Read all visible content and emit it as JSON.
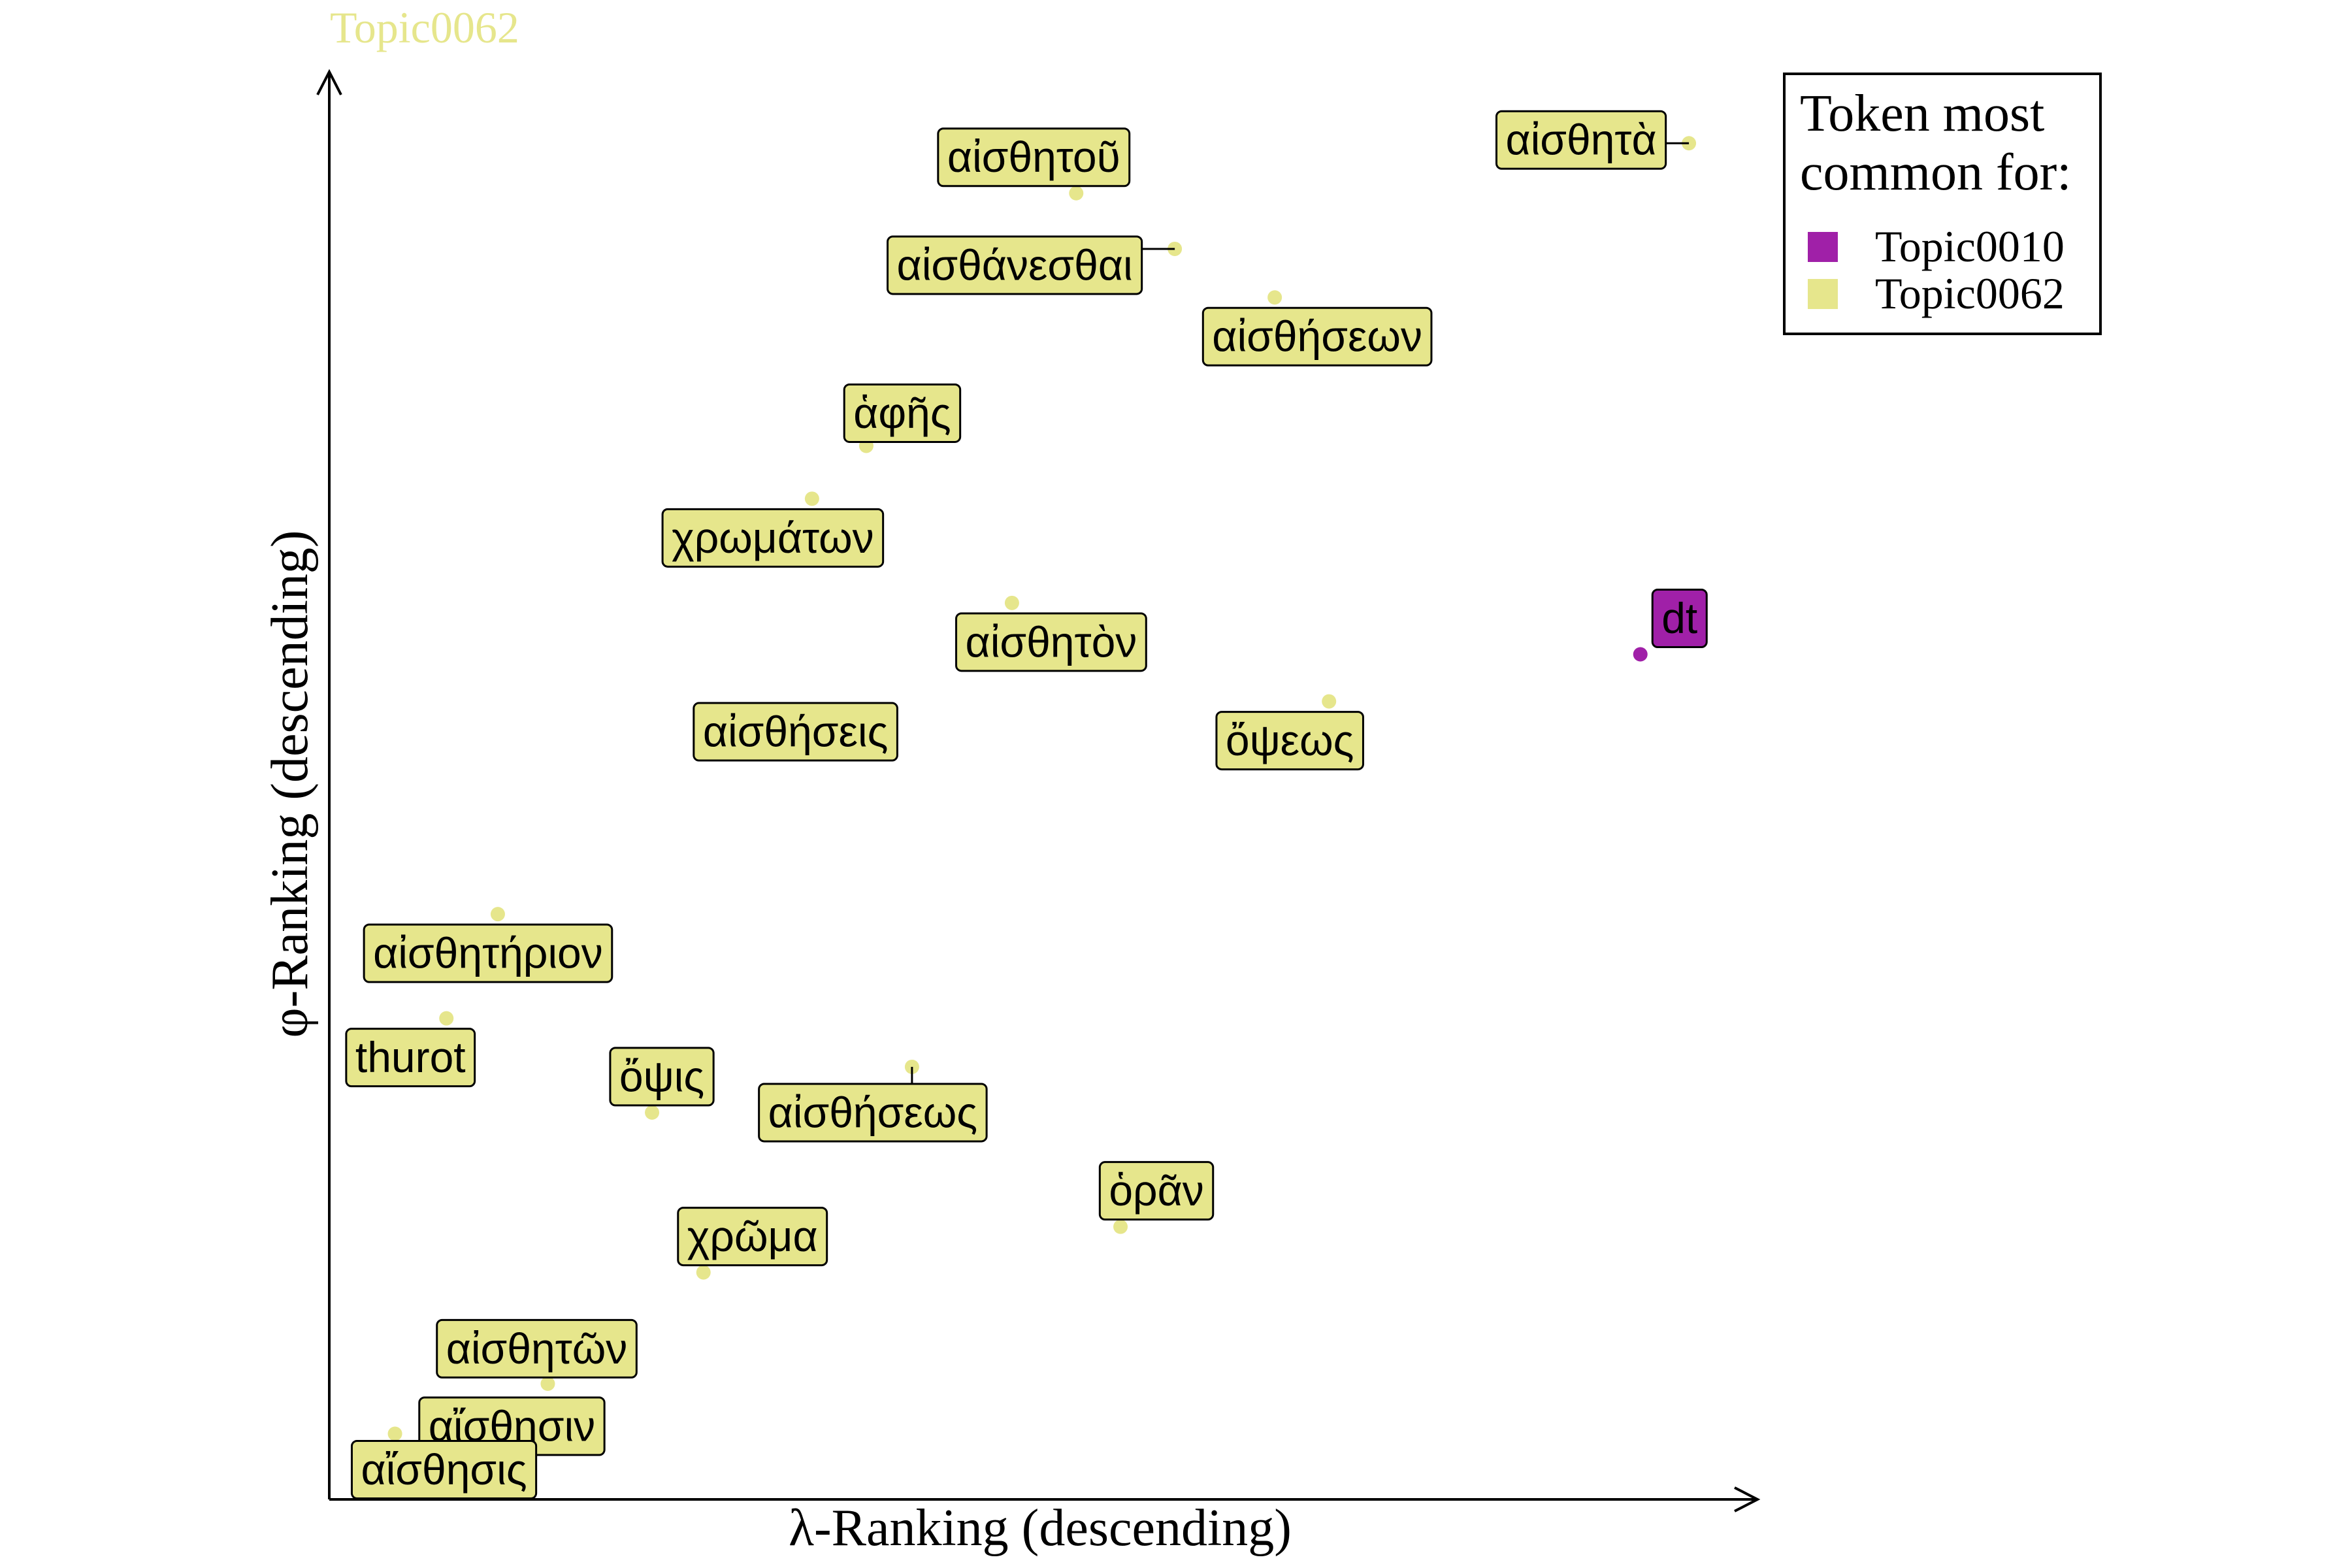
{
  "chart_data": {
    "type": "scatter",
    "title": "Topic0062",
    "xlabel": "λ-Ranking (descending)",
    "ylabel": "φ-Ranking (descending)",
    "xlim": [
      0,
      100
    ],
    "ylim": [
      0,
      100
    ],
    "grid": false,
    "legend_placement": "top-right",
    "legend": {
      "title_lines": [
        "Token most",
        "common for:"
      ],
      "entries": [
        {
          "label": "Topic0010",
          "color": "#a020a8"
        },
        {
          "label": "Topic0062",
          "color": "#e6e68c"
        }
      ]
    },
    "colors": {
      "Topic0010": "#a020a8",
      "Topic0062": "#e6e68c",
      "title": "#e6e68c",
      "label_border": "#000000",
      "axis": "#000000"
    },
    "points": [
      {
        "token": "αἰσθητοῦ",
        "topic": "Topic0062",
        "x": 52.3,
        "y": 91.5
      },
      {
        "token": "αἰσθητὰ",
        "topic": "Topic0062",
        "x": 95.2,
        "y": 95.0
      },
      {
        "token": "αἰσθάνεσθαι",
        "topic": "Topic0062",
        "x": 59.2,
        "y": 87.6
      },
      {
        "token": "αἰσθήσεων",
        "topic": "Topic0062",
        "x": 66.2,
        "y": 84.2
      },
      {
        "token": "ἁφῆς",
        "topic": "Topic0062",
        "x": 37.6,
        "y": 73.8
      },
      {
        "token": "χρωμάτων",
        "topic": "Topic0062",
        "x": 33.8,
        "y": 70.1
      },
      {
        "token": "αἰσθητὸν",
        "topic": "Topic0062",
        "x": 47.8,
        "y": 62.8
      },
      {
        "token": "dt",
        "topic": "Topic0010",
        "x": 91.8,
        "y": 59.2
      },
      {
        "token": "ὄψεως",
        "topic": "Topic0062",
        "x": 70.0,
        "y": 55.9
      },
      {
        "token": "αἰσθήσεις",
        "topic": "Topic0062",
        "x": 29.9,
        "y": 52.4
      },
      {
        "token": "αἰσθητήριον",
        "topic": "Topic0062",
        "x": 11.8,
        "y": 41.0
      },
      {
        "token": "thurot",
        "topic": "Topic0062",
        "x": 8.2,
        "y": 33.7
      },
      {
        "token": "αἰσθήσεως",
        "topic": "Topic0062",
        "x": 40.8,
        "y": 30.3
      },
      {
        "token": "ὄψις",
        "topic": "Topic0062",
        "x": 22.6,
        "y": 27.1
      },
      {
        "token": "ὁρᾶν",
        "topic": "Topic0062",
        "x": 55.4,
        "y": 19.1
      },
      {
        "token": "χρῶμα",
        "topic": "Topic0062",
        "x": 26.2,
        "y": 15.9
      },
      {
        "token": "αἰσθητῶν",
        "topic": "Topic0062",
        "x": 19.1,
        "y": 11.7
      },
      {
        "token": "αἴσθησιν",
        "topic": "Topic0062",
        "x": 15.3,
        "y": 8.1
      },
      {
        "token": "αἴσθησις",
        "topic": "Topic0062",
        "x": 4.6,
        "y": 4.6
      }
    ]
  }
}
